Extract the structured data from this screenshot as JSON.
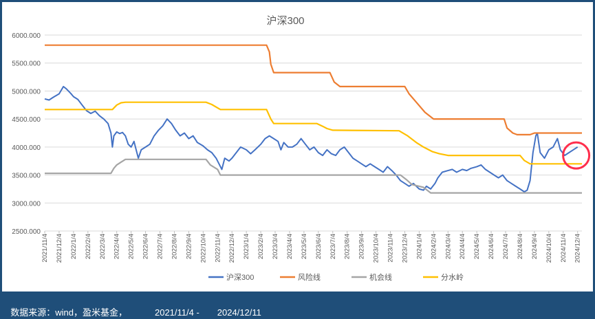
{
  "chart_data": {
    "type": "line",
    "title": "沪深300",
    "xlabel": "",
    "ylabel": "",
    "ylim": [
      2500,
      6000
    ],
    "yticks": [
      "6000.000",
      "5500.000",
      "5000.000",
      "4500.000",
      "4000.000",
      "3500.000",
      "3000.000",
      "2500.000"
    ],
    "x_tick_labels": [
      "2021/11/4",
      "2021/12/4",
      "2022/1/4",
      "2022/2/4",
      "2022/3/4",
      "2022/4/4",
      "2022/5/4",
      "2022/6/4",
      "2022/7/4",
      "2022/8/4",
      "2022/9/4",
      "2022/10/4",
      "2022/11/4",
      "2022/12/4",
      "2023/1/4",
      "2023/2/4",
      "2023/3/4",
      "2023/4/4",
      "2023/5/4",
      "2023/6/4",
      "2023/7/4",
      "2023/8/4",
      "2023/9/4",
      "2023/10/4",
      "2023/11/4",
      "2023/12/4",
      "2024/1/4",
      "2024/2/4",
      "2024/3/4",
      "2024/4/4",
      "2024/5/4",
      "2024/6/4",
      "2024/7/4",
      "2024/8/4",
      "2024/9/4",
      "2024/10/4",
      "2024/11/4",
      "2024/12/4"
    ],
    "x_range_months": [
      0,
      37.3
    ],
    "legend_position": "bottom",
    "series": [
      {
        "name": "沪深300",
        "color": "#4472c4",
        "points": [
          [
            0,
            4860
          ],
          [
            0.3,
            4840
          ],
          [
            0.6,
            4890
          ],
          [
            1.0,
            4950
          ],
          [
            1.3,
            5080
          ],
          [
            1.5,
            5040
          ],
          [
            1.8,
            4960
          ],
          [
            2.0,
            4900
          ],
          [
            2.3,
            4850
          ],
          [
            2.6,
            4750
          ],
          [
            2.9,
            4650
          ],
          [
            3.2,
            4600
          ],
          [
            3.5,
            4640
          ],
          [
            3.8,
            4560
          ],
          [
            4.1,
            4500
          ],
          [
            4.4,
            4420
          ],
          [
            4.6,
            4250
          ],
          [
            4.7,
            4000
          ],
          [
            4.8,
            4200
          ],
          [
            5.0,
            4270
          ],
          [
            5.2,
            4240
          ],
          [
            5.4,
            4260
          ],
          [
            5.6,
            4200
          ],
          [
            5.8,
            4050
          ],
          [
            6.0,
            4000
          ],
          [
            6.2,
            4100
          ],
          [
            6.4,
            3900
          ],
          [
            6.5,
            3800
          ],
          [
            6.7,
            3950
          ],
          [
            7.0,
            4000
          ],
          [
            7.3,
            4050
          ],
          [
            7.6,
            4200
          ],
          [
            7.9,
            4300
          ],
          [
            8.2,
            4380
          ],
          [
            8.5,
            4500
          ],
          [
            8.8,
            4420
          ],
          [
            9.1,
            4300
          ],
          [
            9.4,
            4200
          ],
          [
            9.7,
            4250
          ],
          [
            10.0,
            4150
          ],
          [
            10.3,
            4200
          ],
          [
            10.6,
            4080
          ],
          [
            11.0,
            4020
          ],
          [
            11.3,
            3950
          ],
          [
            11.6,
            3900
          ],
          [
            11.9,
            3800
          ],
          [
            12.1,
            3700
          ],
          [
            12.3,
            3600
          ],
          [
            12.5,
            3800
          ],
          [
            12.8,
            3750
          ],
          [
            13.0,
            3800
          ],
          [
            13.3,
            3900
          ],
          [
            13.6,
            4000
          ],
          [
            14.0,
            3950
          ],
          [
            14.3,
            3880
          ],
          [
            14.6,
            3950
          ],
          [
            15.0,
            4050
          ],
          [
            15.3,
            4150
          ],
          [
            15.6,
            4200
          ],
          [
            15.9,
            4150
          ],
          [
            16.2,
            4100
          ],
          [
            16.4,
            3950
          ],
          [
            16.6,
            4080
          ],
          [
            16.9,
            4000
          ],
          [
            17.2,
            4000
          ],
          [
            17.5,
            4050
          ],
          [
            17.8,
            4150
          ],
          [
            18.1,
            4050
          ],
          [
            18.4,
            3950
          ],
          [
            18.7,
            4000
          ],
          [
            19.0,
            3900
          ],
          [
            19.3,
            3850
          ],
          [
            19.6,
            3950
          ],
          [
            19.9,
            3880
          ],
          [
            20.2,
            3850
          ],
          [
            20.5,
            3950
          ],
          [
            20.8,
            4000
          ],
          [
            21.1,
            3900
          ],
          [
            21.4,
            3800
          ],
          [
            21.7,
            3750
          ],
          [
            22.0,
            3700
          ],
          [
            22.3,
            3650
          ],
          [
            22.6,
            3700
          ],
          [
            22.9,
            3650
          ],
          [
            23.2,
            3600
          ],
          [
            23.5,
            3550
          ],
          [
            23.8,
            3650
          ],
          [
            24.1,
            3580
          ],
          [
            24.4,
            3500
          ],
          [
            24.7,
            3400
          ],
          [
            25.0,
            3350
          ],
          [
            25.3,
            3300
          ],
          [
            25.6,
            3350
          ],
          [
            26.0,
            3250
          ],
          [
            26.3,
            3230
          ],
          [
            26.5,
            3300
          ],
          [
            26.8,
            3250
          ],
          [
            27.1,
            3350
          ],
          [
            27.3,
            3450
          ],
          [
            27.6,
            3550
          ],
          [
            28.0,
            3580
          ],
          [
            28.3,
            3600
          ],
          [
            28.6,
            3550
          ],
          [
            29.0,
            3600
          ],
          [
            29.3,
            3580
          ],
          [
            29.6,
            3620
          ],
          [
            30.0,
            3650
          ],
          [
            30.3,
            3680
          ],
          [
            30.6,
            3600
          ],
          [
            30.9,
            3550
          ],
          [
            31.2,
            3500
          ],
          [
            31.5,
            3450
          ],
          [
            31.8,
            3500
          ],
          [
            32.1,
            3400
          ],
          [
            32.4,
            3350
          ],
          [
            32.7,
            3300
          ],
          [
            33.0,
            3250
          ],
          [
            33.3,
            3200
          ],
          [
            33.5,
            3230
          ],
          [
            33.7,
            3400
          ],
          [
            33.9,
            3900
          ],
          [
            34.1,
            4200
          ],
          [
            34.2,
            4250
          ],
          [
            34.4,
            3900
          ],
          [
            34.7,
            3800
          ],
          [
            35.0,
            3950
          ],
          [
            35.3,
            4000
          ],
          [
            35.6,
            4150
          ],
          [
            35.8,
            3950
          ],
          [
            36.1,
            3850
          ],
          [
            36.4,
            3900
          ],
          [
            36.7,
            3950
          ],
          [
            37.0,
            4000
          ]
        ]
      },
      {
        "name": "风险线",
        "color": "#ed7d31",
        "points": [
          [
            0,
            5820
          ],
          [
            15.4,
            5820
          ],
          [
            15.6,
            5700
          ],
          [
            15.7,
            5480
          ],
          [
            15.9,
            5330
          ],
          [
            19.8,
            5330
          ],
          [
            20.1,
            5160
          ],
          [
            20.5,
            5080
          ],
          [
            25.0,
            5080
          ],
          [
            25.3,
            4950
          ],
          [
            25.8,
            4800
          ],
          [
            26.4,
            4620
          ],
          [
            27.0,
            4500
          ],
          [
            31.9,
            4500
          ],
          [
            32.1,
            4340
          ],
          [
            32.5,
            4250
          ],
          [
            32.8,
            4220
          ],
          [
            33.7,
            4220
          ],
          [
            34.0,
            4250
          ],
          [
            37.3,
            4250
          ]
        ]
      },
      {
        "name": "机会线",
        "color": "#a5a5a5",
        "points": [
          [
            0,
            3530
          ],
          [
            4.6,
            3530
          ],
          [
            4.8,
            3620
          ],
          [
            5.0,
            3680
          ],
          [
            5.3,
            3730
          ],
          [
            5.6,
            3780
          ],
          [
            11.2,
            3780
          ],
          [
            11.5,
            3680
          ],
          [
            12.0,
            3600
          ],
          [
            12.2,
            3500
          ],
          [
            24.7,
            3500
          ],
          [
            25.1,
            3420
          ],
          [
            25.5,
            3330
          ],
          [
            26.3,
            3280
          ],
          [
            26.8,
            3180
          ],
          [
            37.3,
            3180
          ]
        ]
      },
      {
        "name": "分水岭",
        "color": "#ffc000",
        "points": [
          [
            0,
            4670
          ],
          [
            4.7,
            4670
          ],
          [
            5.0,
            4750
          ],
          [
            5.3,
            4790
          ],
          [
            5.6,
            4800
          ],
          [
            11.2,
            4800
          ],
          [
            11.6,
            4760
          ],
          [
            12.2,
            4670
          ],
          [
            15.4,
            4670
          ],
          [
            15.7,
            4500
          ],
          [
            15.9,
            4420
          ],
          [
            18.9,
            4420
          ],
          [
            19.3,
            4370
          ],
          [
            19.6,
            4330
          ],
          [
            20.0,
            4300
          ],
          [
            24.6,
            4290
          ],
          [
            25.2,
            4200
          ],
          [
            25.8,
            4080
          ],
          [
            26.3,
            4000
          ],
          [
            26.9,
            3920
          ],
          [
            27.4,
            3880
          ],
          [
            28.0,
            3850
          ],
          [
            33.0,
            3850
          ],
          [
            33.3,
            3760
          ],
          [
            33.7,
            3700
          ],
          [
            37.3,
            3700
          ]
        ]
      }
    ],
    "annotation": "red-circle-highlight"
  },
  "legend": {
    "items": [
      "沪深300",
      "风险线",
      "机会线",
      "分水岭"
    ]
  },
  "footer": {
    "source": "数据来源：wind，盈米基金，",
    "start_date": "2021/11/4 -",
    "end_date": "2024/12/11"
  }
}
